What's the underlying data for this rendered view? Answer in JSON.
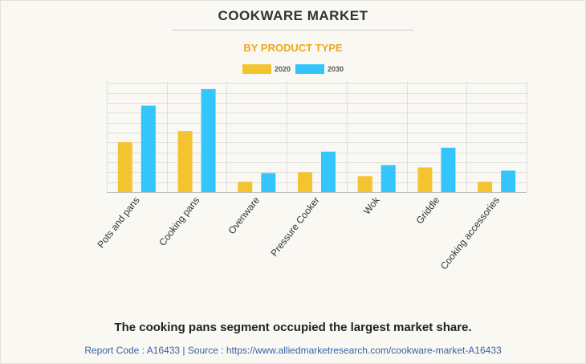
{
  "title": "COOKWARE MARKET",
  "subtitle": "BY PRODUCT TYPE",
  "footer": {
    "note": "The cooking pans segment occupied the largest market share.",
    "source": "Report Code : A16433  |  Source : https://www.alliedmarketresearch.com/cookware-market-A16433"
  },
  "colors": {
    "series_2020": "#f4c430",
    "series_2030": "#33c5fb",
    "subtitle": "#f0a81e",
    "source": "#3a62a7",
    "grid": "#dedede"
  },
  "chart_data": {
    "type": "bar",
    "categories": [
      "Pots and pans",
      "Cooking pans",
      "Ovenware",
      "Pressure Cooker",
      "Wok",
      "Griddle",
      "Cooking accessories"
    ],
    "series": [
      {
        "name": "2020",
        "values": [
          6.3,
          7.7,
          1.3,
          2.5,
          2.0,
          3.1,
          1.3
        ]
      },
      {
        "name": "2030",
        "values": [
          10.9,
          13.0,
          2.4,
          5.1,
          3.4,
          5.6,
          2.7
        ]
      }
    ],
    "title": "COOKWARE MARKET",
    "subtitle": "BY PRODUCT TYPE",
    "xlabel": "",
    "ylabel": "",
    "ylim": [
      0,
      14
    ],
    "ytick_step": 1.25,
    "grid": true,
    "show_y_tick_labels": false,
    "legend": "top-center"
  }
}
